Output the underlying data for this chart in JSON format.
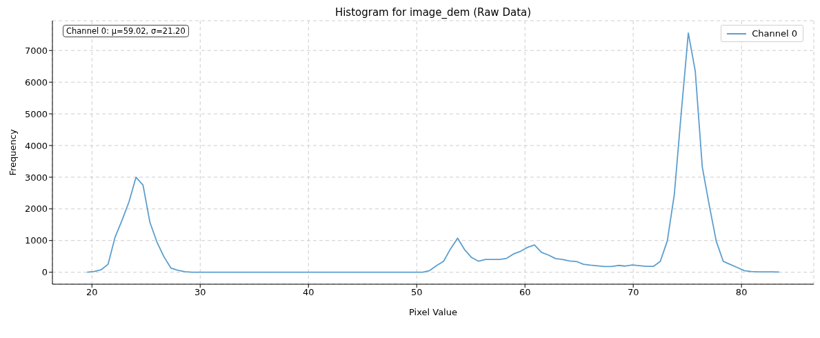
{
  "chart_data": {
    "type": "line",
    "title": "Histogram for image_dem (Raw Data)",
    "xlabel": "Pixel Value",
    "ylabel": "Frequency",
    "annotations": [
      "Channel 0: μ=59.02, σ=21.20"
    ],
    "x": [
      19.55,
      20.2,
      20.84,
      21.49,
      22.13,
      22.78,
      23.42,
      24.07,
      24.72,
      25.36,
      26.01,
      26.65,
      27.3,
      27.94,
      28.59,
      29.24,
      29.88,
      30.53,
      31.17,
      31.82,
      32.47,
      33.11,
      33.76,
      34.4,
      35.05,
      35.69,
      36.34,
      36.99,
      37.63,
      38.28,
      38.92,
      39.57,
      40.21,
      40.86,
      41.51,
      42.15,
      42.8,
      43.44,
      44.09,
      44.74,
      45.38,
      46.03,
      46.67,
      47.32,
      47.96,
      48.61,
      49.26,
      49.9,
      50.55,
      51.19,
      51.84,
      52.48,
      53.13,
      53.78,
      54.42,
      55.07,
      55.71,
      56.36,
      57.01,
      57.65,
      58.3,
      58.94,
      59.59,
      60.23,
      60.88,
      61.53,
      62.17,
      62.82,
      63.46,
      64.11,
      64.76,
      65.4,
      66.05,
      66.69,
      67.34,
      67.98,
      68.63,
      69.28,
      69.92,
      70.57,
      71.21,
      71.86,
      72.5,
      73.15,
      73.8,
      74.44,
      75.09,
      75.73,
      76.38,
      77.03,
      77.67,
      78.32,
      78.96,
      79.61,
      80.25,
      80.9,
      81.55,
      82.19,
      82.84,
      83.48
    ],
    "series": [
      {
        "name": "Channel 0",
        "color": "#5b9ecf",
        "values": [
          0,
          20,
          75,
          250,
          1100,
          1640,
          2220,
          3000,
          2750,
          1570,
          950,
          490,
          130,
          60,
          15,
          0,
          0,
          0,
          0,
          0,
          0,
          0,
          0,
          0,
          0,
          0,
          0,
          0,
          0,
          0,
          0,
          0,
          0,
          0,
          0,
          0,
          0,
          0,
          0,
          0,
          0,
          0,
          0,
          0,
          0,
          0,
          0,
          0,
          0,
          50,
          208,
          347,
          740,
          1076,
          715,
          465,
          347,
          403,
          403,
          403,
          438,
          576,
          660,
          785,
          861,
          625,
          542,
          430,
          403,
          354,
          340,
          250,
          222,
          201,
          180,
          180,
          215,
          194,
          229,
          205,
          185,
          185,
          342,
          992,
          2464,
          5050,
          7550,
          6350,
          3320,
          2100,
          980,
          342,
          246,
          150,
          48,
          20,
          10,
          10,
          10,
          5
        ]
      }
    ],
    "xlim": [
      16.35,
      86.68
    ],
    "ylim": [
      -378,
      7941
    ],
    "xticks": [
      20,
      30,
      40,
      50,
      60,
      70,
      80
    ],
    "yticks": [
      0,
      1000,
      2000,
      3000,
      4000,
      5000,
      6000,
      7000
    ],
    "grid": true,
    "legend": "top right"
  }
}
